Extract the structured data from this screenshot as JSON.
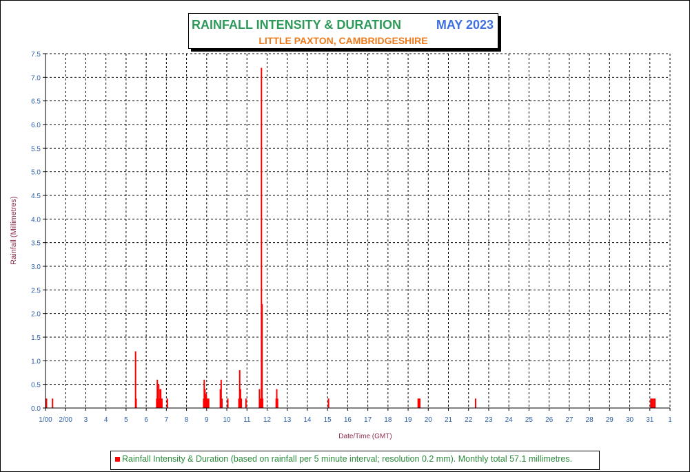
{
  "title": {
    "main": "RAINFALL INTENSITY & DURATION",
    "month": "MAY 2023",
    "subtitle": "LITTLE PAXTON, CAMBRIDGESHIRE"
  },
  "colors": {
    "title_main": "#2e9a5a",
    "title_month": "#3f6fe0",
    "subtitle": "#ec7a1a",
    "axis_text": "#2a5ea6",
    "axis_label": "#8b2a4e",
    "bar": "#ff0000",
    "legend_text": "#2a8a3a"
  },
  "legend": {
    "text": "Rainfall Intensity & Duration (based on rainfall per 5 minute interval; resolution 0.2 mm). Monthly total 57.1 millimetres."
  },
  "chart_data": {
    "type": "bar",
    "title": "RAINFALL INTENSITY & DURATION",
    "xlabel": "Date/Time (GMT)",
    "ylabel": "Rainfall (Millimetres)",
    "xlim": [
      1,
      32
    ],
    "ylim": [
      0,
      7.5
    ],
    "grid": true,
    "legend_position": "bottom",
    "y_ticks": [
      "0.0",
      "0.5",
      "1.0",
      "1.5",
      "2.0",
      "2.5",
      "3.0",
      "3.5",
      "4.0",
      "4.5",
      "5.0",
      "5.5",
      "6.0",
      "6.5",
      "7.0",
      "7.5"
    ],
    "x_ticks": [
      "1/00",
      "2/00",
      "3",
      "4",
      "5",
      "6",
      "7",
      "8",
      "9",
      "10",
      "11",
      "12",
      "13",
      "14",
      "15",
      "16",
      "17",
      "18",
      "19",
      "20",
      "21",
      "22",
      "23",
      "24",
      "25",
      "26",
      "27",
      "28",
      "29",
      "30",
      "31",
      "1"
    ],
    "series": [
      {
        "name": "Rainfall Intensity & Duration (based on rainfall per 5 minute interval; resolution 0.2 mm). Monthly total 57.1 millimetres.",
        "points": [
          {
            "x": 1.02,
            "y": 0.2
          },
          {
            "x": 1.05,
            "y": 0.2
          },
          {
            "x": 1.35,
            "y": 0.2
          },
          {
            "x": 5.47,
            "y": 1.2
          },
          {
            "x": 5.5,
            "y": 0.2
          },
          {
            "x": 6.52,
            "y": 0.2
          },
          {
            "x": 6.55,
            "y": 0.6
          },
          {
            "x": 6.58,
            "y": 0.2
          },
          {
            "x": 6.62,
            "y": 0.5
          },
          {
            "x": 6.65,
            "y": 0.2
          },
          {
            "x": 6.69,
            "y": 0.4
          },
          {
            "x": 6.72,
            "y": 0.4
          },
          {
            "x": 6.75,
            "y": 0.2
          },
          {
            "x": 6.78,
            "y": 0.2
          },
          {
            "x": 7.05,
            "y": 0.2
          },
          {
            "x": 8.85,
            "y": 0.2
          },
          {
            "x": 8.88,
            "y": 0.6
          },
          {
            "x": 8.92,
            "y": 0.4
          },
          {
            "x": 8.95,
            "y": 0.2
          },
          {
            "x": 8.98,
            "y": 0.3
          },
          {
            "x": 9.02,
            "y": 0.2
          },
          {
            "x": 9.06,
            "y": 0.2
          },
          {
            "x": 9.1,
            "y": 0.2
          },
          {
            "x": 9.68,
            "y": 0.4
          },
          {
            "x": 9.72,
            "y": 0.6
          },
          {
            "x": 9.76,
            "y": 0.2
          },
          {
            "x": 10.05,
            "y": 0.2
          },
          {
            "x": 10.6,
            "y": 0.2
          },
          {
            "x": 10.64,
            "y": 0.8
          },
          {
            "x": 10.68,
            "y": 0.4
          },
          {
            "x": 10.72,
            "y": 0.2
          },
          {
            "x": 10.95,
            "y": 0.2
          },
          {
            "x": 11.62,
            "y": 0.4
          },
          {
            "x": 11.66,
            "y": 0.2
          },
          {
            "x": 11.72,
            "y": 7.2
          },
          {
            "x": 11.75,
            "y": 2.2
          },
          {
            "x": 11.78,
            "y": 0.2
          },
          {
            "x": 12.45,
            "y": 0.2
          },
          {
            "x": 12.48,
            "y": 0.4
          },
          {
            "x": 12.52,
            "y": 0.2
          },
          {
            "x": 15.05,
            "y": 0.2
          },
          {
            "x": 19.5,
            "y": 0.2
          },
          {
            "x": 19.54,
            "y": 0.2
          },
          {
            "x": 19.58,
            "y": 0.2
          },
          {
            "x": 22.35,
            "y": 0.2
          },
          {
            "x": 31.05,
            "y": 0.2
          },
          {
            "x": 31.09,
            "y": 0.2
          },
          {
            "x": 31.13,
            "y": 0.2
          },
          {
            "x": 31.2,
            "y": 0.2
          },
          {
            "x": 31.25,
            "y": 0.2
          }
        ]
      }
    ]
  }
}
